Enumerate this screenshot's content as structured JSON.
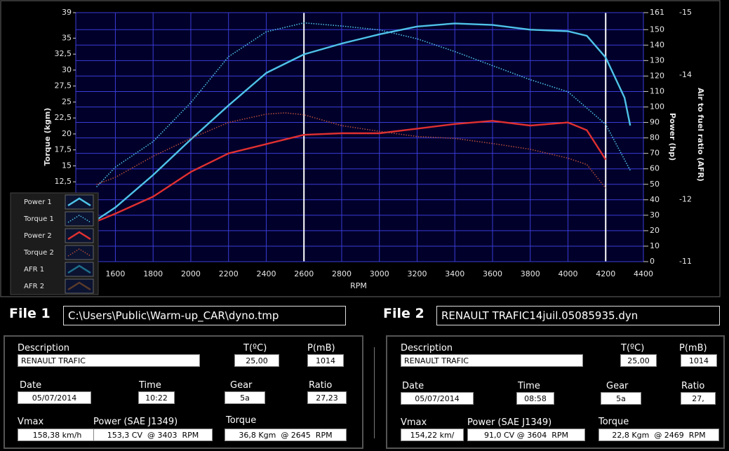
{
  "chart_data": {
    "type": "line",
    "x_label": "RPM",
    "y_label": "Torque (kgm)",
    "y2_label": "Power (hp)",
    "xlim": [
      1390,
      4400
    ],
    "xticks": [
      1600,
      1800,
      2000,
      2200,
      2400,
      2600,
      2800,
      3000,
      3200,
      3400,
      3600,
      3800,
      4000,
      4200,
      4400
    ],
    "ylim": [
      0,
      39
    ],
    "yticks": [
      {
        "value": 12.5,
        "label": "12,5"
      },
      15,
      {
        "value": 17.5,
        "label": "17,5"
      },
      20,
      {
        "value": 22.5,
        "label": "22,5"
      },
      25,
      {
        "value": 27.5,
        "label": "27,5"
      },
      30,
      {
        "value": 32.5,
        "label": "32,5"
      },
      35,
      39
    ],
    "y2lim": [
      0,
      161
    ],
    "y2ticks": [
      0,
      10,
      20,
      30,
      40,
      50,
      60,
      70,
      80,
      90,
      100,
      110,
      120,
      130,
      140,
      150,
      161
    ],
    "afr_axis": {
      "label": "Air to fuel ratio (AFR)",
      "lim": [
        -11,
        -15
      ],
      "ticks": [
        -15,
        -14,
        -12,
        -11
      ]
    },
    "markers": [
      2600,
      4200
    ],
    "grid": true,
    "series": [
      {
        "name": "Power 1",
        "color": "#4fc3e8",
        "style": "solid",
        "axis": "y2",
        "x": [
          1500,
          1600,
          1800,
          2000,
          2200,
          2400,
          2600,
          2800,
          3000,
          3200,
          3400,
          3600,
          3800,
          4000,
          4100,
          4200,
          4300,
          4330
        ],
        "values": [
          27,
          35,
          56,
          79,
          101,
          122,
          134,
          141,
          147,
          152,
          154,
          153,
          150,
          149,
          146,
          132,
          106,
          88
        ]
      },
      {
        "name": "Torque 1",
        "color": "#4fc3e8",
        "style": "dotted",
        "x": [
          1500,
          1600,
          1800,
          2000,
          2200,
          2400,
          2600,
          2800,
          3000,
          3200,
          3400,
          3600,
          3800,
          4000,
          4200,
          4330
        ],
        "values": [
          11.7,
          14.8,
          18.8,
          24.9,
          32.1,
          36.0,
          37.4,
          36.9,
          36.3,
          34.9,
          32.9,
          30.7,
          28.5,
          26.6,
          21.5,
          14.3
        ]
      },
      {
        "name": "Power 2",
        "color": "#e03030",
        "style": "solid",
        "axis": "y2",
        "x": [
          1500,
          1600,
          1800,
          2000,
          2200,
          2400,
          2600,
          2800,
          3000,
          3200,
          3400,
          3600,
          3800,
          4000,
          4100,
          4200
        ],
        "values": [
          26,
          31,
          42,
          58,
          70,
          76,
          82,
          83,
          83,
          86,
          89,
          91,
          88,
          90,
          85,
          66
        ]
      },
      {
        "name": "Torque 2",
        "color": "#b04a3a",
        "style": "dotted",
        "x": [
          1500,
          1600,
          1800,
          2000,
          2200,
          2400,
          2500,
          2600,
          2800,
          3000,
          3200,
          3400,
          3600,
          3800,
          4000,
          4100,
          4200
        ],
        "values": [
          12.1,
          13.2,
          16.5,
          19.3,
          21.8,
          23.1,
          23.3,
          23.0,
          21.3,
          20.4,
          19.6,
          19.3,
          18.5,
          17.6,
          16.2,
          15.2,
          11.5
        ]
      },
      {
        "name": "AFR 1",
        "color": "#1f6f8a",
        "style": "solid",
        "x": [],
        "values": []
      },
      {
        "name": "AFR 2",
        "color": "#5a3a2a",
        "style": "solid",
        "x": [],
        "values": []
      }
    ]
  },
  "files": [
    {
      "label": "File 1",
      "path": "C:\\Users\\Public\\Warm-up_CAR\\dyno.tmp"
    },
    {
      "label": "File 2",
      "path": "RENAULT TRAFIC14juil.05085935.dyn"
    }
  ],
  "panels": [
    {
      "fields": [
        {
          "label": "Description",
          "value": "RENAULT TRAFIC"
        },
        {
          "label": "T(ºC)",
          "value": "25,00"
        },
        {
          "label": "P(mB)",
          "value": "1014"
        },
        {
          "label": "Date",
          "value": "05/07/2014"
        },
        {
          "label": "Time",
          "value": "10:22"
        },
        {
          "label": "Gear",
          "value": "5a"
        },
        {
          "label": "Ratio",
          "value": "27,23"
        },
        {
          "label": "Vmax",
          "value": "158,38 km/h"
        },
        {
          "label": "Power (SAE J1349)",
          "value": "153,3 CV  @ 3403  RPM"
        },
        {
          "label": "Torque",
          "value": "36,8 Kgm  @ 2645  RPM"
        }
      ]
    },
    {
      "fields": [
        {
          "label": "Description",
          "value": "RENAULT TRAFIC"
        },
        {
          "label": "T(ºC)",
          "value": "25,00"
        },
        {
          "label": "P(mB)",
          "value": "1014"
        },
        {
          "label": "Date",
          "value": "05/07/2014"
        },
        {
          "label": "Time",
          "value": "08:58"
        },
        {
          "label": "Gear",
          "value": "5a"
        },
        {
          "label": "Ratio",
          "value": "27,"
        },
        {
          "label": "Vmax",
          "value": "154,22 km/"
        },
        {
          "label": "Power (SAE J1349)",
          "value": "91,0 CV @ 3604  RPM"
        },
        {
          "label": "Torque",
          "value": "22,8 Kgm  @ 2469  RPM"
        }
      ]
    }
  ]
}
